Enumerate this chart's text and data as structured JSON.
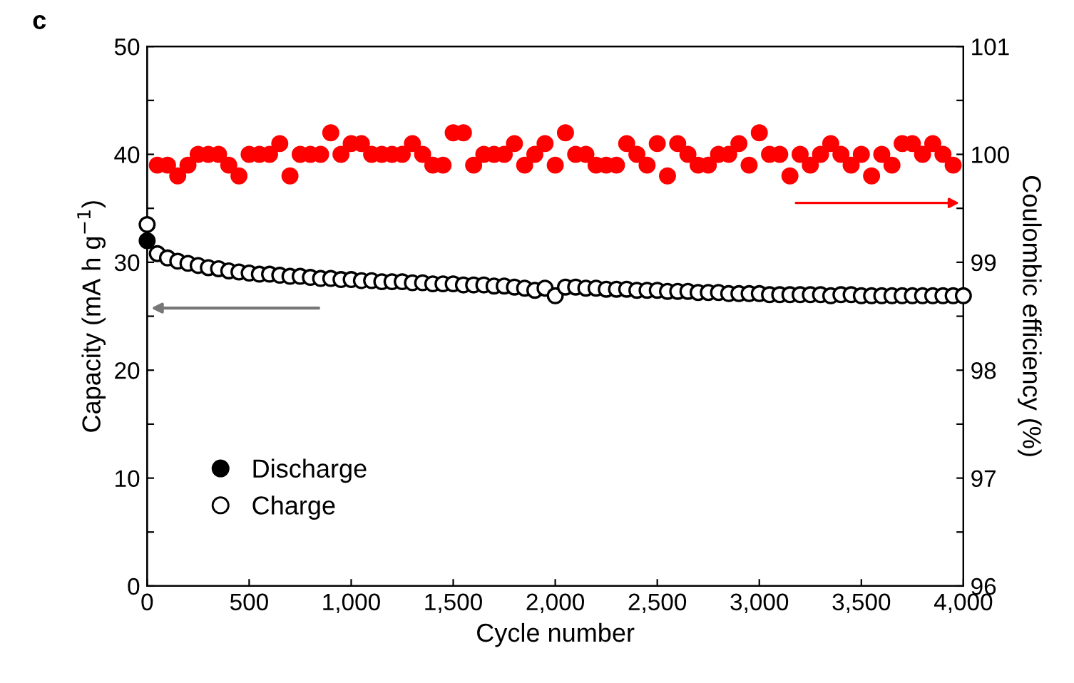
{
  "chart_data": {
    "type": "scatter",
    "xlabel": "Cycle number",
    "ylabel": "Capacity (mA h g$^{−1}$)",
    "y2label": "Coulombic efficiency (%)",
    "annotations": [
      "c"
    ],
    "xlim": [
      0,
      4000
    ],
    "xticks": [
      0,
      500,
      {
        "value": 1000,
        "label": "1,000"
      },
      {
        "value": 1500,
        "label": "1,500"
      },
      {
        "value": 2000,
        "label": "2,000"
      },
      {
        "value": 2500,
        "label": "2,500"
      },
      {
        "value": 3000,
        "label": "3,000"
      },
      {
        "value": 3500,
        "label": "3,500"
      },
      {
        "value": 4000,
        "label": "4,000"
      }
    ],
    "ylim": [
      0,
      50
    ],
    "yticks": [
      0,
      {
        "value": 5,
        "label": null
      },
      10,
      {
        "value": 15,
        "label": null
      },
      20,
      {
        "value": 25,
        "label": null
      },
      30,
      {
        "value": 35,
        "label": null
      },
      40,
      {
        "value": 45,
        "label": null
      },
      50
    ],
    "y2lim": [
      96,
      101
    ],
    "y2ticks": [
      96,
      {
        "value": 96.5,
        "label": null
      },
      97,
      {
        "value": 97.5,
        "label": null
      },
      98,
      {
        "value": 98.5,
        "label": null
      },
      99,
      {
        "value": 99.5,
        "label": null
      },
      100,
      {
        "value": 100.5,
        "label": null
      },
      101
    ],
    "marker": "circle",
    "legend": "bottom left",
    "grid": false,
    "series": [
      {
        "name": "Discharge",
        "color": "#000000",
        "x": [
          0
        ],
        "values": [
          32
        ]
      },
      {
        "name": "Charge",
        "color": "#ffffff",
        "x": [
          0,
          50,
          100,
          150,
          200,
          250,
          300,
          350,
          400,
          450,
          500,
          550,
          600,
          650,
          700,
          750,
          800,
          850,
          900,
          950,
          1000,
          1050,
          1100,
          1150,
          1200,
          1250,
          1300,
          1350,
          1400,
          1450,
          1500,
          1550,
          1600,
          1650,
          1700,
          1750,
          1800,
          1850,
          1900,
          1950,
          2000,
          2050,
          2100,
          2150,
          2200,
          2250,
          2300,
          2350,
          2400,
          2450,
          2500,
          2550,
          2600,
          2650,
          2700,
          2750,
          2800,
          2850,
          2900,
          2950,
          3000,
          3050,
          3100,
          3150,
          3200,
          3250,
          3300,
          3350,
          3400,
          3450,
          3500,
          3550,
          3600,
          3650,
          3700,
          3750,
          3800,
          3850,
          3900,
          3950,
          4000
        ],
        "values": [
          33.5,
          30.8,
          30.4,
          30.1,
          29.9,
          29.7,
          29.5,
          29.4,
          29.2,
          29.1,
          29.0,
          28.9,
          28.9,
          28.8,
          28.7,
          28.7,
          28.6,
          28.5,
          28.5,
          28.4,
          28.4,
          28.3,
          28.3,
          28.2,
          28.2,
          28.2,
          28.1,
          28.1,
          28.0,
          28.0,
          28.0,
          27.9,
          27.9,
          27.9,
          27.8,
          27.8,
          27.7,
          27.6,
          27.4,
          27.6,
          26.9,
          27.7,
          27.7,
          27.6,
          27.6,
          27.5,
          27.5,
          27.5,
          27.4,
          27.4,
          27.4,
          27.3,
          27.3,
          27.3,
          27.2,
          27.2,
          27.2,
          27.1,
          27.1,
          27.1,
          27.1,
          27.0,
          27.0,
          27.0,
          27.0,
          27.0,
          27.0,
          26.9,
          27.0,
          27.0,
          26.9,
          26.9,
          26.9,
          26.9,
          26.9,
          26.9,
          26.9,
          26.9,
          26.9,
          26.9,
          26.9
        ]
      },
      {
        "color": "#ff0000",
        "axis": "y2",
        "x": [
          50,
          100,
          150,
          200,
          250,
          300,
          350,
          400,
          450,
          500,
          550,
          600,
          650,
          700,
          750,
          800,
          850,
          900,
          950,
          1000,
          1050,
          1100,
          1150,
          1200,
          1250,
          1300,
          1350,
          1400,
          1450,
          1500,
          1550,
          1600,
          1650,
          1700,
          1750,
          1800,
          1850,
          1900,
          1950,
          2000,
          2050,
          2100,
          2150,
          2200,
          2250,
          2300,
          2350,
          2400,
          2450,
          2500,
          2550,
          2600,
          2650,
          2700,
          2750,
          2800,
          2850,
          2900,
          2950,
          3000,
          3050,
          3100,
          3150,
          3200,
          3250,
          3300,
          3350,
          3400,
          3450,
          3500,
          3550,
          3600,
          3650,
          3700,
          3750,
          3800,
          3850,
          3900,
          3950
        ],
        "values": [
          99.9,
          99.9,
          99.8,
          99.9,
          100.0,
          100.0,
          100.0,
          99.9,
          99.8,
          100.0,
          100.0,
          100.0,
          100.1,
          99.8,
          100.0,
          100.0,
          100.0,
          100.2,
          100.0,
          100.1,
          100.1,
          100.0,
          100.0,
          100.0,
          100.0,
          100.1,
          100.0,
          99.9,
          99.9,
          100.2,
          100.2,
          99.9,
          100.0,
          100.0,
          100.0,
          100.1,
          99.9,
          100.0,
          100.1,
          99.9,
          100.2,
          100.0,
          100.0,
          99.9,
          99.9,
          99.9,
          100.1,
          100.0,
          99.9,
          100.1,
          99.8,
          100.1,
          100.0,
          99.9,
          99.9,
          100.0,
          100.0,
          100.1,
          99.9,
          100.2,
          100.0,
          100.0,
          99.8,
          100.0,
          99.9,
          100.0,
          100.1,
          100.0,
          99.9,
          100.0,
          99.8,
          100.0,
          99.9,
          100.1,
          100.1,
          100.0,
          100.1,
          100.0,
          99.9
        ]
      }
    ]
  }
}
